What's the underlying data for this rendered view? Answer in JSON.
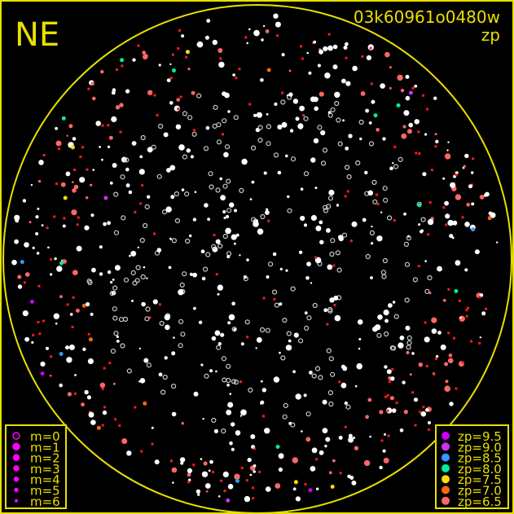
{
  "direction_label": "NE",
  "image_id": "03k60961o0480w",
  "mode_label": "zp",
  "frame_color": "#e8e000",
  "magnitude_legend": [
    {
      "label": "m=0",
      "style": "hollow"
    },
    {
      "label": "m=1",
      "style": "filled"
    },
    {
      "label": "m=2",
      "style": "filled"
    },
    {
      "label": "m=3",
      "style": "filled"
    },
    {
      "label": "m=4",
      "style": "filled"
    },
    {
      "label": "m=5",
      "style": "filled"
    },
    {
      "label": "m=6",
      "style": "filled"
    }
  ],
  "magnitude_legend_color": "#ff00ff",
  "zp_legend": [
    {
      "label": "zp=9.5",
      "color": "#cc00ff"
    },
    {
      "label": "zp=9.0",
      "color": "#cc33ee"
    },
    {
      "label": "zp=8.5",
      "color": "#3399ff"
    },
    {
      "label": "zp=8.0",
      "color": "#00ee99"
    },
    {
      "label": "zp=7.5",
      "color": "#ffdd00"
    },
    {
      "label": "zp=7.0",
      "color": "#ff6611"
    },
    {
      "label": "zp=6.5",
      "color": "#ff6666"
    }
  ],
  "star_colors": {
    "unmatched": "#ffffff",
    "hollow": "#cccccc",
    "low_zp": "#ff1a1a"
  }
}
